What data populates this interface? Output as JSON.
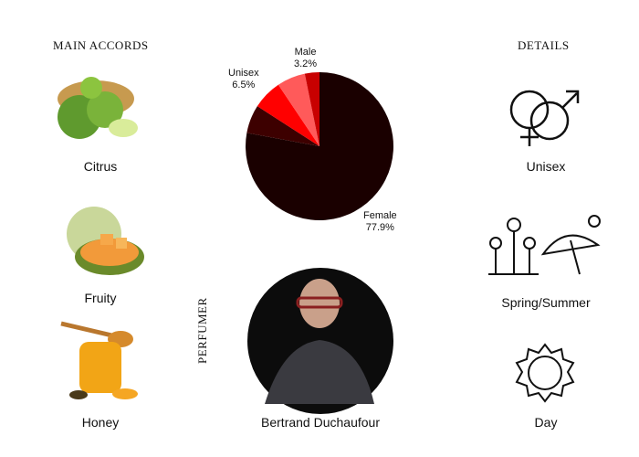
{
  "main_accords": {
    "title": "MAIN ACCORDS",
    "items": [
      {
        "label": "Citrus",
        "icon": "bergamot-image"
      },
      {
        "label": "Fruity",
        "icon": "melon-image"
      },
      {
        "label": "Honey",
        "icon": "honey-image"
      }
    ]
  },
  "details": {
    "title": "DETAILS",
    "items": [
      {
        "label": "Unisex",
        "icon": "gender-icon"
      },
      {
        "label": "Spring/Summer",
        "icon": "season-icon"
      },
      {
        "label": "Day",
        "icon": "sun-icon"
      }
    ]
  },
  "perfumer": {
    "title": "PERFUMER",
    "name": "Bertrand Duchaufour"
  },
  "chart_data": {
    "type": "pie",
    "slices": [
      {
        "label": "Female",
        "value": 77.9,
        "display": "77.9%",
        "color": "#1a0000"
      },
      {
        "label": "",
        "value": 6.2,
        "color": "#3d0000"
      },
      {
        "label": "Unisex",
        "value": 6.5,
        "display": "6.5%",
        "color": "#ff0000"
      },
      {
        "label": "",
        "value": 6.2,
        "color": "#ff5a5a"
      },
      {
        "label": "Male",
        "value": 3.2,
        "display": "3.2%",
        "color": "#c80000"
      }
    ]
  }
}
